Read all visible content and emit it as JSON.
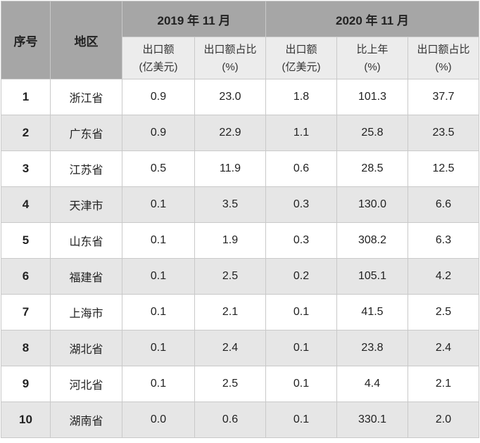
{
  "header": {
    "index": "序号",
    "region": "地区",
    "period_2019": "2019 年 11 月",
    "period_2020": "2020 年 11 月",
    "sub_2019_export": [
      "出口额",
      "(亿美元)"
    ],
    "sub_2019_share": [
      "出口额占比",
      "(%)"
    ],
    "sub_2020_export": [
      "出口额",
      "(亿美元)"
    ],
    "sub_2020_yoy": [
      "比上年",
      "(%)"
    ],
    "sub_2020_share": [
      "出口额占比",
      "(%)"
    ]
  },
  "rows": [
    {
      "index": "1",
      "region": "浙江省",
      "exp2019": "0.9",
      "share2019": "23.0",
      "exp2020": "1.8",
      "yoy2020": "101.3",
      "share2020": "37.7"
    },
    {
      "index": "2",
      "region": "广东省",
      "exp2019": "0.9",
      "share2019": "22.9",
      "exp2020": "1.1",
      "yoy2020": "25.8",
      "share2020": "23.5"
    },
    {
      "index": "3",
      "region": "江苏省",
      "exp2019": "0.5",
      "share2019": "11.9",
      "exp2020": "0.6",
      "yoy2020": "28.5",
      "share2020": "12.5"
    },
    {
      "index": "4",
      "region": "天津市",
      "exp2019": "0.1",
      "share2019": "3.5",
      "exp2020": "0.3",
      "yoy2020": "130.0",
      "share2020": "6.6"
    },
    {
      "index": "5",
      "region": "山东省",
      "exp2019": "0.1",
      "share2019": "1.9",
      "exp2020": "0.3",
      "yoy2020": "308.2",
      "share2020": "6.3"
    },
    {
      "index": "6",
      "region": "福建省",
      "exp2019": "0.1",
      "share2019": "2.5",
      "exp2020": "0.2",
      "yoy2020": "105.1",
      "share2020": "4.2"
    },
    {
      "index": "7",
      "region": "上海市",
      "exp2019": "0.1",
      "share2019": "2.1",
      "exp2020": "0.1",
      "yoy2020": "41.5",
      "share2020": "2.5"
    },
    {
      "index": "8",
      "region": "湖北省",
      "exp2019": "0.1",
      "share2019": "2.4",
      "exp2020": "0.1",
      "yoy2020": "23.8",
      "share2020": "2.4"
    },
    {
      "index": "9",
      "region": "河北省",
      "exp2019": "0.1",
      "share2019": "2.5",
      "exp2020": "0.1",
      "yoy2020": "4.4",
      "share2020": "2.1"
    },
    {
      "index": "10",
      "region": "湖南省",
      "exp2019": "0.0",
      "share2019": "0.6",
      "exp2020": "0.1",
      "yoy2020": "330.1",
      "share2020": "2.0"
    }
  ]
}
